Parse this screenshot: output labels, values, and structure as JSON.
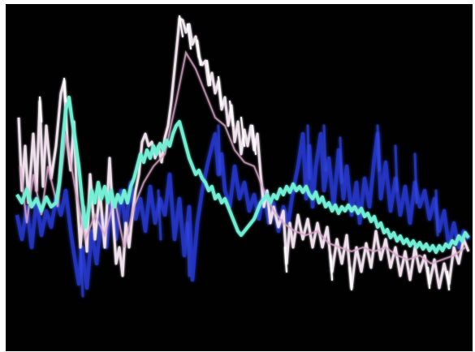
{
  "scene": {
    "description_visible_text": "",
    "background_color": "#010101",
    "frame_color": "#ffffff",
    "trace_colors": {
      "blue": "#2a3ad8",
      "cyan": "#6ff0d8",
      "white": "#f2e8f0",
      "pink": "#e8b8d8"
    }
  }
}
